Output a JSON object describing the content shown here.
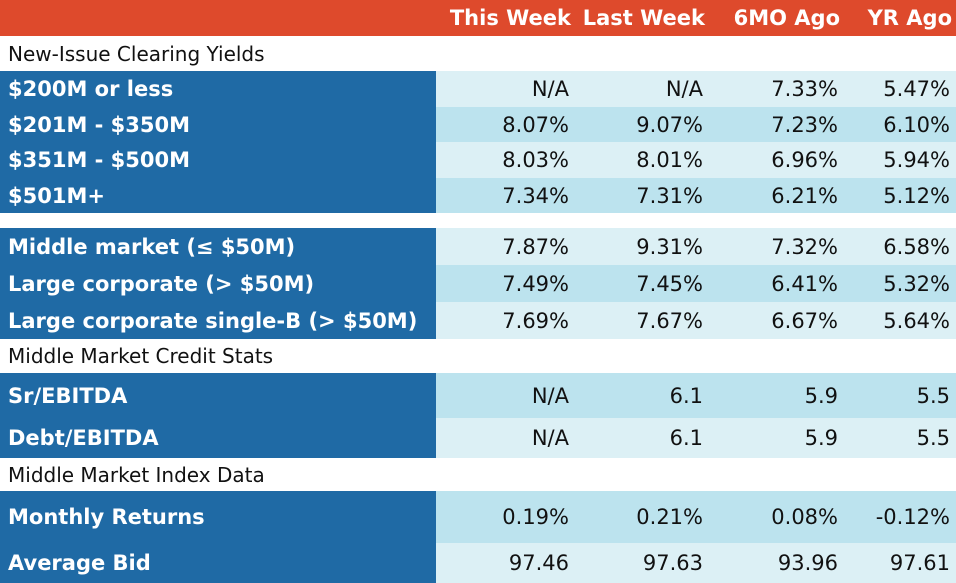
{
  "colors": {
    "header_bg": "#de4a2c",
    "label_bg": "#1f6aa5",
    "row_light": "#dcf0f5",
    "row_mid": "#bce3ee"
  },
  "chart_data": {
    "type": "table",
    "columns": [
      "This Week",
      "Last Week",
      "6MO Ago",
      "YR Ago"
    ],
    "sections": [
      {
        "title": "New-Issue Clearing Yields",
        "rows": [
          {
            "label": "$200M or less",
            "values": [
              "N/A",
              "N/A",
              "7.33%",
              "5.47%"
            ]
          },
          {
            "label": "$201M - $350M",
            "values": [
              "8.07%",
              "9.07%",
              "7.23%",
              "6.10%"
            ]
          },
          {
            "label": "$351M - $500M",
            "values": [
              "8.03%",
              "8.01%",
              "6.96%",
              "5.94%"
            ]
          },
          {
            "label": "$501M+",
            "values": [
              "7.34%",
              "7.31%",
              "6.21%",
              "5.12%"
            ]
          }
        ]
      },
      {
        "title": "",
        "rows": [
          {
            "label": "Middle market (≤ $50M)",
            "values": [
              "7.87%",
              "9.31%",
              "7.32%",
              "6.58%"
            ]
          },
          {
            "label": "Large corporate (> $50M)",
            "values": [
              "7.49%",
              "7.45%",
              "6.41%",
              "5.32%"
            ]
          },
          {
            "label": "Large corporate single-B (> $50M)",
            "values": [
              "7.69%",
              "7.67%",
              "6.67%",
              "5.64%"
            ]
          }
        ]
      },
      {
        "title": "Middle Market Credit Stats",
        "rows": [
          {
            "label": "Sr/EBITDA",
            "values": [
              "N/A",
              "6.1",
              "5.9",
              "5.5"
            ]
          },
          {
            "label": "Debt/EBITDA",
            "values": [
              "N/A",
              "6.1",
              "5.9",
              "5.5"
            ]
          }
        ]
      },
      {
        "title": "Middle Market Index Data",
        "rows": [
          {
            "label": "Monthly Returns",
            "values": [
              "0.19%",
              "0.21%",
              "0.08%",
              "-0.12%"
            ]
          },
          {
            "label": "Average Bid",
            "values": [
              "97.46",
              "97.63",
              "93.96",
              "97.61"
            ]
          }
        ]
      }
    ]
  }
}
